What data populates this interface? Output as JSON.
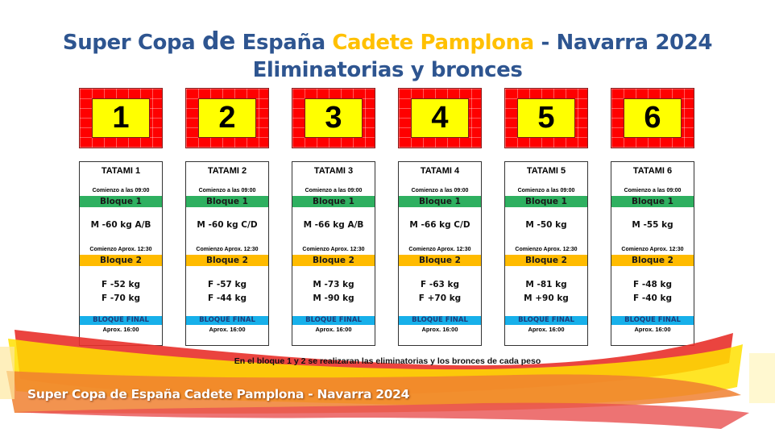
{
  "title": {
    "line1_part1": "Super Copa ",
    "line1_de": "de",
    "line1_part2": " España ",
    "line1_gold": "Cadete Pamplona",
    "line1_part3": " - Navarra 2024",
    "line2": "Eliminatorias y bronces"
  },
  "colors": {
    "title_blue": "#2e5590",
    "title_gold": "#ffc000",
    "mat_red": "#ff0000",
    "mat_yellow": "#ffff00",
    "bloque1_green": "#2eb060",
    "bloque2_orange": "#ffbb00",
    "final_blue": "#17b0ea"
  },
  "tatamis": [
    {
      "number": "1",
      "name": "TATAMI 1",
      "start1": "Comienzo a las 09:00",
      "bloque1": "Bloque 1",
      "b1_cats": [
        "M -60 kg A/B"
      ],
      "start2": "Comienzo Aprox. 12:30",
      "bloque2": "Bloque 2",
      "b2_cats": [
        "F -52 kg",
        "F -70 kg"
      ],
      "final": "BLOQUE FINAL",
      "final_time": "Aprox. 16:00"
    },
    {
      "number": "2",
      "name": "TATAMI 2",
      "start1": "Comienzo a las 09:00",
      "bloque1": "Bloque 1",
      "b1_cats": [
        "M -60 kg C/D"
      ],
      "start2": "Comienzo Aprox. 12:30",
      "bloque2": "Bloque 2",
      "b2_cats": [
        "F -57 kg",
        "F -44 kg"
      ],
      "final": "BLOQUE FINAL",
      "final_time": "Aprox. 16:00"
    },
    {
      "number": "3",
      "name": "TATAMI 3",
      "start1": "Comienzo a las 09:00",
      "bloque1": "Bloque 1",
      "b1_cats": [
        "M -66 kg A/B"
      ],
      "start2": "Comienzo Aprox. 12:30",
      "bloque2": "Bloque 2",
      "b2_cats": [
        "M -73 kg",
        "M -90 kg"
      ],
      "final": "BLOQUE FINAL",
      "final_time": "Aprox. 16:00"
    },
    {
      "number": "4",
      "name": "TATAMI 4",
      "start1": "Comienzo a las 09:00",
      "bloque1": "Bloque 1",
      "b1_cats": [
        "M -66 kg C/D"
      ],
      "start2": "Comienzo Aprox. 12:30",
      "bloque2": "Bloque 2",
      "b2_cats": [
        "F -63 kg",
        "F +70 kg"
      ],
      "final": "BLOQUE FINAL",
      "final_time": "Aprox. 16:00"
    },
    {
      "number": "5",
      "name": "TATAMI 5",
      "start1": "Comienzo a las 09:00",
      "bloque1": "Bloque 1",
      "b1_cats": [
        "M -50 kg"
      ],
      "start2": "Comienzo Aprox. 12:30",
      "bloque2": "Bloque 2",
      "b2_cats": [
        "M -81 kg",
        "M +90 kg"
      ],
      "final": "BLOQUE FINAL",
      "final_time": "Aprox. 16:00"
    },
    {
      "number": "6",
      "name": "TATAMI 6",
      "start1": "Comienzo a las 09:00",
      "bloque1": "Bloque 1",
      "b1_cats": [
        "M -55 kg"
      ],
      "start2": "Comienzo Aprox. 12:30",
      "bloque2": "Bloque 2",
      "b2_cats": [
        "F -48 kg",
        "F -40 kg"
      ],
      "final": "BLOQUE FINAL",
      "final_time": "Aprox. 16:00"
    }
  ],
  "note": "En el bloque 1 y 2 se realizaran las eliminatorias y los bronces de cada peso",
  "footer": "Super Copa de España Cadete Pamplona - Navarra 2024"
}
